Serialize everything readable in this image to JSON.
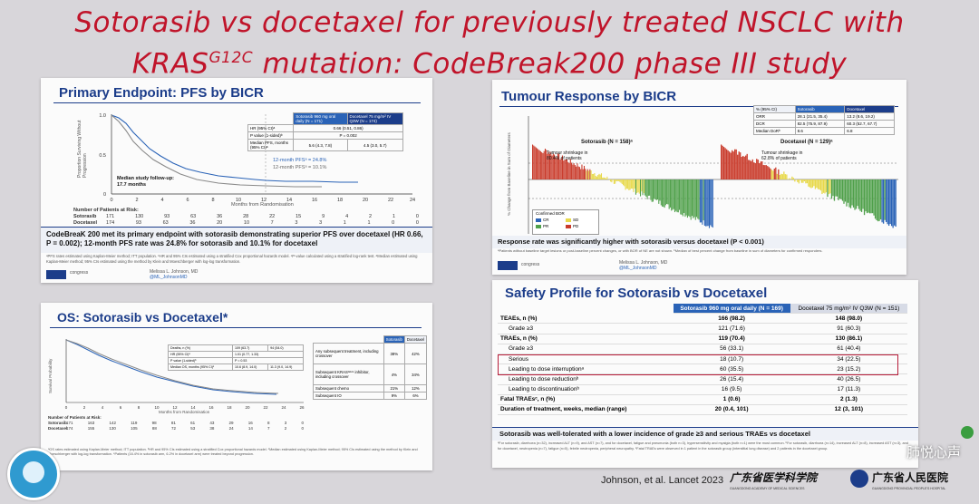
{
  "title": {
    "line1": "Sotorasib vs docetaxel for previously treated NSCLC with",
    "line2_pre": "KRAS",
    "line2_sup": "G12C",
    "line2_post": " mutation: CodeBreak200 phase III study"
  },
  "pfs": {
    "title": "Primary Endpoint: PFS by BICR",
    "ylabel": "Proportion Surviving Without Progression",
    "xlabel": "Months from Randomisation",
    "legend_sotorasib": "Sotorasib 960 mg oral daily (N = 171)",
    "legend_docetaxel": "Docetaxel 75 mg/m² IV Q3W (N = 174)",
    "table_rows": [
      [
        "HR (95% CI)ᵃ",
        "0.66 (0.51, 0.86)"
      ],
      [
        "P value (1-sided)ᵇ",
        "P = 0.002"
      ],
      [
        "Median PFS, months (95% CI)ᵃ",
        "5.6 (4.3, 7.8)",
        "4.5 (3.0, 5.7)"
      ]
    ],
    "ann_sotorasib": "12-month PFSᵃ = 24.8%",
    "ann_docetaxel": "12-month PFSᵃ = 10.1%",
    "followup_label": "Median study follow-up:",
    "followup_value": "17.7 months",
    "risk_title": "Number of Patients at Risk:",
    "risk_sotorasib_label": "Sotorasib",
    "risk_docetaxel_label": "Docetaxel",
    "risk_sotorasib": [
      "171",
      "130",
      "93",
      "63",
      "36",
      "28",
      "22",
      "15",
      "9",
      "4",
      "2",
      "1",
      "0"
    ],
    "risk_docetaxel": [
      "174",
      "93",
      "63",
      "36",
      "20",
      "10",
      "7",
      "3",
      "3",
      "1",
      "1",
      "0",
      "0"
    ],
    "summary": "CodeBreaK 200 met its primary endpoint with sotorasib demonstrating superior PFS over docetaxel (HR 0.66, P = 0.002); 12-month PFS rate was 24.8% for sotorasib and 10.1% for docetaxel",
    "footnotes": "ᵃPFS rates estimated using Kaplan-Meier method; ITT population. ᵇHR and 95% CIs estimated using a stratified Cox proportional hazards model. ᶜP-value calculated using a stratified log-rank test. ᵈMedian estimated using Kaplan-Meier method; 95% CIs estimated using the method by Klein and Moeschberger with log-log transformation.",
    "presenter": "Melissa L. Johnson, MD",
    "handle": "@ML_JohnsonMD",
    "congress": "congress"
  },
  "tumour": {
    "title": "Tumour Response by BICR",
    "ylabel": "% Change from Baseline in Sum of Diameters",
    "sotorasib_label": "Sotorasib (N = 158)ᵃ",
    "docetaxel_label": "Docetaxel (N = 129)ᵃ",
    "sotorasib_shrink": "Tumour shrinkage in 80.4% of patients",
    "docetaxel_shrink": "Tumour shrinkage in 62.8% of patients",
    "table_header": [
      "% (95% CI)",
      "Sotorasib",
      "Docetaxel"
    ],
    "table_rows": [
      [
        "ORR",
        "28.1 (21.5, 35.4)",
        "13.2 (8.6, 19.2)"
      ],
      [
        "DCR",
        "82.5 (75.9, 87.9)",
        "60.3 (52.7, 67.7)"
      ],
      [
        "Median DoRᵇ",
        "8.6",
        "6.8"
      ]
    ],
    "legend_title": "Confirmed BOR",
    "legend": [
      {
        "label": "CR",
        "color": "#2a63b7"
      },
      {
        "label": "SD",
        "color": "#e8d94a"
      },
      {
        "label": "PR",
        "color": "#4fa04a"
      },
      {
        "label": "PD",
        "color": "#c93a2a"
      }
    ],
    "summary": "Response rate was significantly higher with sotorasib versus docetaxel (P < 0.001)",
    "footnotes": "ᵃPatients without baseline target lesions or post-baseline percent changes, or with BOR of NE are not shown. ᵇMedian of best percent change from baseline in sum of diameters for confirmed responders.",
    "presenter": "Melissa L. Johnson, MD",
    "handle": "@ML_JohnsonMD",
    "congress": "congress"
  },
  "os": {
    "title": "OS: Sotorasib vs Docetaxel*",
    "ylabel": "Survival Probability",
    "xlabel": "Months from Randomisation",
    "risk_title": "Number of Patients at Risk:",
    "risk_sotorasib_label": "Sotorasib",
    "risk_docetaxel_label": "Docetaxel",
    "risk_sotorasib": [
      "171",
      "163",
      "142",
      "119",
      "98",
      "81",
      "61",
      "43",
      "29",
      "16",
      "8",
      "3",
      "0"
    ],
    "risk_docetaxel": [
      "174",
      "155",
      "130",
      "105",
      "88",
      "72",
      "53",
      "38",
      "24",
      "14",
      "7",
      "2",
      "0"
    ],
    "table_rows": [
      [
        "Deaths, n (%)",
        "109 (63.7)",
        "94 (54.0)"
      ],
      [
        "HR (95% CI)ᵃ",
        "1.01 (0.77, 1.33)"
      ],
      [
        "P value (1-sided)ᵇ",
        "P = 0.53"
      ],
      [
        "Median OS, months (95% CI)ᶜ",
        "10.6 (8.9, 14.0)",
        "11.3 (9.0, 14.9)"
      ]
    ],
    "side_header": [
      "",
      "Sotorasib",
      "Docetaxel"
    ],
    "side_rows": [
      [
        "Any subsequent treatment, including crossover",
        "38%",
        "42%"
      ],
      [
        "Subsequent KRASᴳ¹²ᶜ inhibitor, including crossover",
        "4%",
        "34%"
      ],
      [
        "Subsequent chemo",
        "21%",
        "12%"
      ],
      [
        "Subsequent IO",
        "9%",
        "6%"
      ]
    ],
    "footnotes": "ᵃOS rates estimated using Kaplan-Meier method; ITT population. ᵇHR and 95% CIs estimated using a stratified Cox proportional hazards model. ᶜMedian estimated using Kaplan-Meier method; 95% CIs estimated using the method by Klein and Moeschberger with log-log transformation. *Patients (16.4% in sotorasib arm, 6.2% in docetaxel arm) were treated beyond progression."
  },
  "safety": {
    "title": "Safety Profile for Sotorasib vs Docetaxel",
    "col_sotorasib": "Sotorasib 960 mg oral daily (N = 169)",
    "col_docetaxel": "Docetaxel 75 mg/m² IV Q3W (N = 151)",
    "rows": [
      {
        "label": "TEAEs, n (%)",
        "s": "166 (98.2)",
        "d": "148 (98.0)",
        "bold": true
      },
      {
        "label": "Grade ≥3",
        "s": "121 (71.6)",
        "d": "91 (60.3)",
        "bold": false
      },
      {
        "label": "TRAEs, n (%)",
        "s": "119 (70.4)",
        "d": "130 (86.1)",
        "bold": true
      },
      {
        "label": "Grade ≥3",
        "s": "56 (33.1)",
        "d": "61 (40.4)",
        "bold": false
      },
      {
        "label": "Serious",
        "s": "18 (10.7)",
        "d": "34 (22.5)",
        "bold": false
      },
      {
        "label": "Leading to dose interruptionᵃ",
        "s": "60 (35.5)",
        "d": "23 (15.2)",
        "bold": false
      },
      {
        "label": "Leading to dose reductionᵇ",
        "s": "26 (15.4)",
        "d": "40 (26.5)",
        "bold": false
      },
      {
        "label": "Leading to discontinuationᵇ",
        "s": "16 (9.5)",
        "d": "17 (11.3)",
        "bold": false
      },
      {
        "label": "Fatal TRAEsᶜ, n (%)",
        "s": "1 (0.6)",
        "d": "2 (1.3)",
        "bold": true
      },
      {
        "label": "Duration of treatment, weeks, median (range)",
        "s": "20 (0.4, 101)",
        "d": "12 (3, 101)",
        "bold": true
      }
    ],
    "summary": "Sotorasib was well-tolerated with a lower incidence of grade ≥3 and serious TRAEs vs docetaxel",
    "footnotes": "ᵃFor sotorasib, diarrhoea (n=32), increased ALT (n=9), and AST (n=7), and for docetaxel, fatigue and pneumonia (both n=3), hypersensitivity and myalgia (both n=1) were the most common. ᵇFor sotorasib, diarrhoea (n=14), increased ALT (n=8), increased AST (n=3), and for docetaxel, neutropenia (n=7), fatigue (n=5), febrile neutropenia, peripheral neuropathy. ᶜFatal TRAEs were observed in 1 patient in the sotorasib group (interstitial lung disease) and 2 patients in the docetaxel group."
  },
  "citation": "Johnson, et al. Lancet 2023",
  "logos": {
    "academy": "广东省医学科学院",
    "academy_en": "GUANGDONG ACADEMY OF MEDICAL SCIENCES",
    "hospital": "广东省人民医院",
    "hospital_en": "GUANGDONG PROVINCIAL PEOPLE'S HOSPITAL",
    "watermark": "肺悦心声"
  },
  "colors": {
    "title": "#c0142a",
    "slide_title": "#1c3d8a",
    "sotorasib": "#2a63b7",
    "docetaxel": "#8a8a8a"
  }
}
